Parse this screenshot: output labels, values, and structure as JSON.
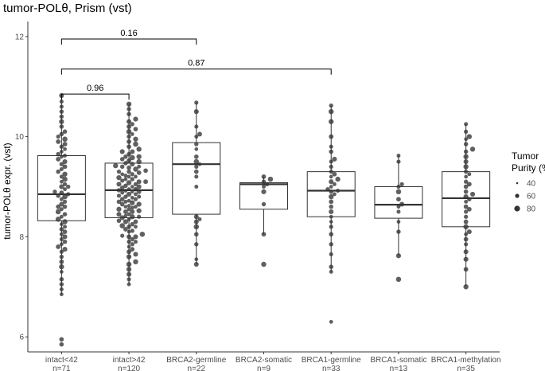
{
  "chart_data": {
    "type": "box",
    "title": "tumor-POLθ, Prism (vst)",
    "ylabel": "tumor-POLθ expr. (vst)",
    "xlabel": "",
    "ylim": [
      5.7,
      12.3
    ],
    "yticks": [
      6,
      8,
      10,
      12
    ],
    "grid": false,
    "groups": [
      {
        "label": "intact<42",
        "n_label": "n=71",
        "q1": 8.32,
        "median": 8.85,
        "q3": 9.62,
        "whisker_low": 6.85,
        "whisker_high": 10.82,
        "points": [
          5.85,
          5.95,
          6.85,
          6.95,
          7.05,
          7.15,
          7.3,
          7.4,
          7.5,
          7.6,
          7.7,
          7.75,
          7.8,
          7.85,
          7.9,
          7.95,
          8.0,
          8.05,
          8.1,
          8.15,
          8.2,
          8.25,
          8.3,
          8.35,
          8.4,
          8.45,
          8.5,
          8.55,
          8.6,
          8.65,
          8.7,
          8.75,
          8.8,
          8.82,
          8.85,
          8.88,
          8.9,
          8.95,
          9.0,
          9.05,
          9.1,
          9.15,
          9.2,
          9.25,
          9.3,
          9.35,
          9.4,
          9.45,
          9.5,
          9.55,
          9.6,
          9.62,
          9.65,
          9.7,
          9.75,
          9.8,
          9.85,
          9.9,
          9.95,
          10.0,
          10.05,
          10.1,
          10.2,
          10.3,
          10.4,
          10.5,
          10.6,
          10.7,
          10.82,
          8.6,
          9.0
        ]
      },
      {
        "label": "intact>42",
        "n_label": "n=120",
        "q1": 8.38,
        "median": 8.93,
        "q3": 9.47,
        "whisker_low": 7.05,
        "whisker_high": 10.65,
        "points": [
          7.05,
          7.15,
          7.25,
          7.35,
          7.45,
          7.5,
          7.6,
          7.65,
          7.7,
          7.75,
          7.8,
          7.85,
          7.9,
          7.95,
          8.0,
          8.02,
          8.05,
          8.1,
          8.12,
          8.15,
          8.2,
          8.22,
          8.25,
          8.3,
          8.32,
          8.35,
          8.38,
          8.4,
          8.42,
          8.45,
          8.5,
          8.52,
          8.55,
          8.58,
          8.6,
          8.62,
          8.65,
          8.68,
          8.7,
          8.72,
          8.75,
          8.78,
          8.8,
          8.82,
          8.85,
          8.88,
          8.9,
          8.92,
          8.93,
          8.95,
          8.98,
          9.0,
          9.02,
          9.05,
          9.08,
          9.1,
          9.12,
          9.15,
          9.18,
          9.2,
          9.22,
          9.25,
          9.28,
          9.3,
          9.32,
          9.35,
          9.38,
          9.4,
          9.42,
          9.45,
          9.47,
          9.5,
          9.52,
          9.55,
          9.58,
          9.6,
          9.65,
          9.7,
          9.75,
          9.8,
          9.85,
          9.9,
          9.95,
          10.0,
          10.05,
          10.1,
          10.15,
          10.2,
          10.25,
          10.3,
          10.35,
          10.45,
          10.55,
          10.65,
          8.3,
          8.5,
          8.7,
          8.9,
          9.1,
          9.3,
          8.4,
          8.6,
          8.8,
          9.0,
          9.2,
          9.4,
          8.2,
          8.0,
          7.9,
          9.6,
          9.7,
          8.45,
          8.65,
          8.85,
          9.05,
          9.25,
          8.55,
          8.75,
          8.95,
          9.15
        ]
      },
      {
        "label": "BRCA2-germline",
        "n_label": "n=22",
        "q1": 8.45,
        "median": 9.45,
        "q3": 9.88,
        "whisker_low": 7.45,
        "whisker_high": 10.68,
        "points": [
          7.45,
          7.55,
          7.85,
          8.05,
          8.2,
          8.3,
          8.35,
          8.4,
          9.0,
          9.2,
          9.3,
          9.4,
          9.45,
          9.5,
          9.6,
          9.75,
          9.85,
          10.0,
          10.05,
          10.2,
          10.5,
          10.68
        ]
      },
      {
        "label": "BRCA2-somatic",
        "n_label": "n=9",
        "q1": 8.55,
        "median": 9.05,
        "q3": 9.08,
        "whisker_low": 8.05,
        "whisker_high": 9.2,
        "points": [
          7.45,
          8.05,
          8.65,
          8.9,
          9.0,
          9.05,
          9.1,
          9.15,
          9.2
        ]
      },
      {
        "label": "BRCA1-germline",
        "n_label": "n=33",
        "q1": 8.4,
        "median": 8.92,
        "q3": 9.3,
        "whisker_low": 7.3,
        "whisker_high": 10.62,
        "points": [
          6.3,
          7.3,
          7.4,
          7.65,
          7.85,
          8.05,
          8.2,
          8.3,
          8.4,
          8.5,
          8.6,
          8.7,
          8.8,
          8.85,
          8.9,
          8.92,
          8.95,
          9.0,
          9.05,
          9.1,
          9.15,
          9.2,
          9.25,
          9.3,
          9.4,
          9.5,
          9.55,
          9.7,
          9.8,
          10.0,
          10.3,
          10.5,
          10.62
        ]
      },
      {
        "label": "BRCA1-somatic",
        "n_label": "n=13",
        "q1": 8.37,
        "median": 8.64,
        "q3": 9.0,
        "whisker_low": 7.62,
        "whisker_high": 9.62,
        "points": [
          7.15,
          7.62,
          8.1,
          8.3,
          8.5,
          8.6,
          8.65,
          8.75,
          8.9,
          9.0,
          9.05,
          9.5,
          9.62
        ]
      },
      {
        "label": "BRCA1-methylation",
        "n_label": "n=35",
        "q1": 8.2,
        "median": 8.77,
        "q3": 9.3,
        "whisker_low": 7.0,
        "whisker_high": 10.25,
        "points": [
          7.0,
          7.35,
          7.55,
          7.7,
          7.85,
          7.95,
          8.05,
          8.1,
          8.2,
          8.3,
          8.4,
          8.5,
          8.55,
          8.6,
          8.7,
          8.75,
          8.8,
          8.85,
          8.9,
          9.0,
          9.05,
          9.1,
          9.2,
          9.25,
          9.3,
          9.4,
          9.5,
          9.6,
          9.7,
          9.75,
          9.85,
          9.95,
          10.0,
          10.1,
          10.25
        ]
      }
    ],
    "comparisons": [
      {
        "from": 0,
        "to": 2,
        "y": 11.95,
        "label": "0.16"
      },
      {
        "from": 0,
        "to": 4,
        "y": 11.35,
        "label": "0.87"
      },
      {
        "from": 0,
        "to": 1,
        "y": 10.85,
        "label": "0.96"
      }
    ],
    "legend": {
      "title_line1": "Tumor",
      "title_line2": "Purity (%)",
      "placement": "right",
      "items": [
        {
          "label": "40",
          "size": 40
        },
        {
          "label": "60",
          "size": 60
        },
        {
          "label": "80",
          "size": 80
        }
      ]
    },
    "colors": {
      "points": "#333333",
      "box": "#333333",
      "background": "#ffffff"
    }
  }
}
